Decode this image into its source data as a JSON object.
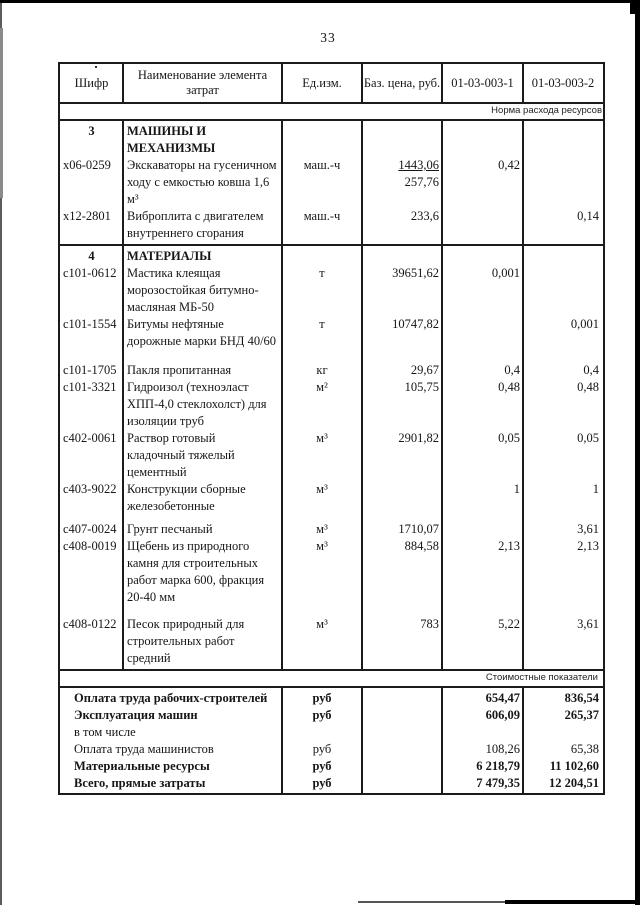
{
  "page_number": "33",
  "header": {
    "code": "Шифр",
    "name": "Наименование элемента затрат",
    "unit": "Ед.изм.",
    "base_price": "Баз. цена, руб.",
    "norm1": "01-03-003-1",
    "norm2": "01-03-003-2"
  },
  "bands": {
    "top": "Норма расхода ресурсов",
    "bottom": "Стоимостные показатели"
  },
  "sections": [
    {
      "num": "3",
      "title": [
        "МАШИНЫ И",
        "МЕХАНИЗМЫ"
      ],
      "items": [
        {
          "code": "х06-0259",
          "name": [
            "Экскаваторы на гусеничном",
            "ходу с емкостью ковша 1,6",
            "м³"
          ],
          "unit": "маш.-ч",
          "price": "1443,06",
          "price2": "257,76",
          "n1": "0,42",
          "n2": ""
        },
        {
          "code": "х12-2801",
          "name": [
            "Виброплита с двигателем",
            "внутреннего сгорания"
          ],
          "unit": "маш.-ч",
          "price": "233,6",
          "n1": "",
          "n2": "0,14"
        }
      ]
    },
    {
      "num": "4",
      "title": [
        "МАТЕРИАЛЫ"
      ],
      "items": [
        {
          "code": "с101-0612",
          "name": [
            "Мастика клеящая",
            "морозостойкая битумно-",
            "масляная МБ-50"
          ],
          "unit": "т",
          "price": "39651,62",
          "n1": "0,001",
          "n2": ""
        },
        {
          "code": "с101-1554",
          "name": [
            "Битумы нефтяные",
            "дорожные марки БНД 40/60"
          ],
          "unit": "т",
          "price": "10747,82",
          "n1": "",
          "n2": "0,001"
        },
        {
          "code": "с101-1705",
          "name": [
            "Пакля пропитанная"
          ],
          "unit": "кг",
          "price": "29,67",
          "n1": "0,4",
          "n2": "0,4"
        },
        {
          "code": "с101-3321",
          "name": [
            "Гидроизол (техноэласт",
            "ХПП-4,0 стеклохолст) для",
            "изоляции труб"
          ],
          "unit": "м²",
          "price": "105,75",
          "n1": "0,48",
          "n2": "0,48"
        },
        {
          "code": "с402-0061",
          "name": [
            "Раствор готовый",
            "кладочный тяжелый",
            "цементный"
          ],
          "unit": "м³",
          "price": "2901,82",
          "n1": "0,05",
          "n2": "0,05"
        },
        {
          "code": "с403-9022",
          "name": [
            "Конструкции сборные",
            "железобетонные"
          ],
          "unit": "м³",
          "price": "",
          "n1": "1",
          "n2": "1"
        },
        {
          "code": "с407-0024",
          "name": [
            "Грунт песчаный"
          ],
          "unit": "м³",
          "price": "1710,07",
          "n1": "",
          "n2": "3,61"
        },
        {
          "code": "с408-0019",
          "name": [
            "Щебень из природного",
            "камня для строительных",
            "работ марка 600, фракция",
            "20-40 мм"
          ],
          "unit": "м³",
          "price": "884,58",
          "n1": "2,13",
          "n2": "2,13"
        },
        {
          "code": "с408-0122",
          "name": [
            "Песок природный для",
            "строительных работ",
            "средний"
          ],
          "unit": "м³",
          "price": "783",
          "n1": "5,22",
          "n2": "3,61"
        }
      ]
    }
  ],
  "totals": [
    {
      "label": "Оплата труда рабочих-строителей",
      "unit": "руб",
      "n1": "654,47",
      "n2": "836,54"
    },
    {
      "label": "Эксплуатация машин",
      "unit": "руб",
      "n1": "606,09",
      "n2": "265,37"
    },
    {
      "label": "в том числе",
      "unit": "",
      "n1": "",
      "n2": ""
    },
    {
      "label": "Оплата труда машинистов",
      "unit": "руб",
      "n1": "108,26",
      "n2": "65,38"
    },
    {
      "label": "Материальные ресурсы",
      "unit": "руб",
      "n1": "6 218,79",
      "n2": "11 102,60"
    },
    {
      "label": "Всего, прямые затраты",
      "unit": "руб",
      "n1": "7 479,35",
      "n2": "12 204,51"
    }
  ]
}
